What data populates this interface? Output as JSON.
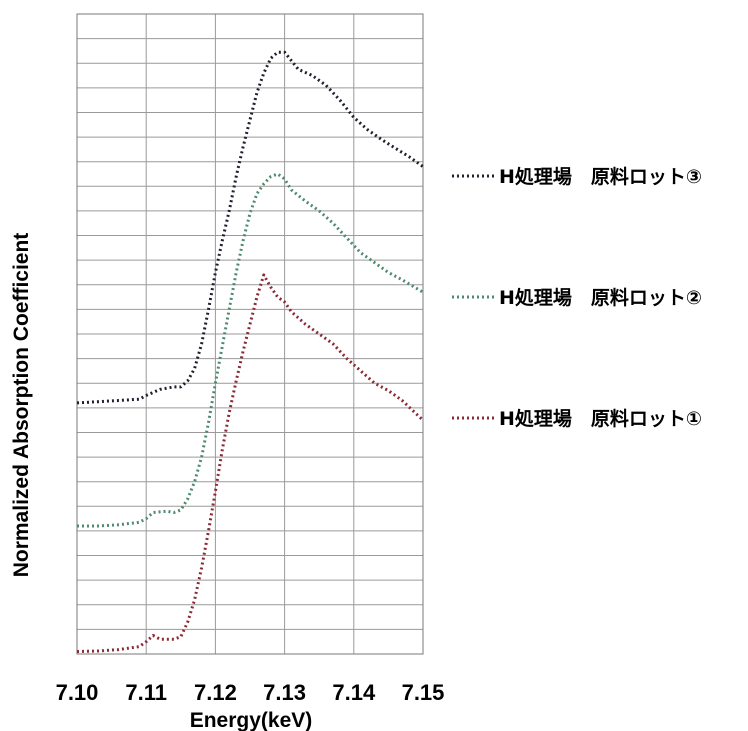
{
  "chart_data": {
    "type": "line",
    "title": "",
    "xlabel": "Energy(keV)",
    "ylabel": "Normalized Absorption Coefficient",
    "xlim": [
      7.1,
      7.15
    ],
    "ylim": [
      0,
      26
    ],
    "x_ticks": [
      "7.10",
      "7.11",
      "7.12",
      "7.13",
      "7.14",
      "7.15"
    ],
    "y_ticks_labeled": false,
    "grid": true,
    "legend_position": "right",
    "series": [
      {
        "name": "H処理場　原料ロット③",
        "color": "#1f1f2e",
        "points": [
          [
            7.1,
            10.2
          ],
          [
            7.103,
            10.25
          ],
          [
            7.106,
            10.3
          ],
          [
            7.109,
            10.35
          ],
          [
            7.11,
            10.5
          ],
          [
            7.112,
            10.75
          ],
          [
            7.114,
            10.85
          ],
          [
            7.115,
            10.85
          ],
          [
            7.116,
            11.1
          ],
          [
            7.117,
            11.6
          ],
          [
            7.118,
            12.6
          ],
          [
            7.119,
            14.0
          ],
          [
            7.12,
            15.5
          ],
          [
            7.121,
            16.8
          ],
          [
            7.122,
            18.0
          ],
          [
            7.123,
            19.4
          ],
          [
            7.124,
            20.6
          ],
          [
            7.125,
            21.7
          ],
          [
            7.126,
            22.8
          ],
          [
            7.127,
            23.6
          ],
          [
            7.128,
            24.2
          ],
          [
            7.129,
            24.45
          ],
          [
            7.13,
            24.45
          ],
          [
            7.131,
            24.1
          ],
          [
            7.132,
            23.75
          ],
          [
            7.134,
            23.5
          ],
          [
            7.136,
            23.1
          ],
          [
            7.138,
            22.5
          ],
          [
            7.14,
            21.8
          ],
          [
            7.142,
            21.3
          ],
          [
            7.144,
            20.9
          ],
          [
            7.146,
            20.55
          ],
          [
            7.148,
            20.2
          ],
          [
            7.15,
            19.8
          ]
        ]
      },
      {
        "name": "H処理場　原料ロット②",
        "color": "#4f8a6e",
        "points": [
          [
            7.1,
            5.2
          ],
          [
            7.103,
            5.2
          ],
          [
            7.106,
            5.25
          ],
          [
            7.109,
            5.35
          ],
          [
            7.11,
            5.5
          ],
          [
            7.111,
            5.75
          ],
          [
            7.113,
            5.8
          ],
          [
            7.114,
            5.75
          ],
          [
            7.115,
            5.85
          ],
          [
            7.116,
            6.3
          ],
          [
            7.117,
            7.0
          ],
          [
            7.118,
            8.0
          ],
          [
            7.119,
            9.4
          ],
          [
            7.12,
            11.0
          ],
          [
            7.121,
            12.5
          ],
          [
            7.122,
            14.0
          ],
          [
            7.123,
            15.5
          ],
          [
            7.124,
            16.8
          ],
          [
            7.125,
            17.9
          ],
          [
            7.126,
            18.7
          ],
          [
            7.127,
            19.1
          ],
          [
            7.128,
            19.4
          ],
          [
            7.129,
            19.5
          ],
          [
            7.13,
            19.3
          ],
          [
            7.131,
            18.85
          ],
          [
            7.133,
            18.4
          ],
          [
            7.135,
            18.0
          ],
          [
            7.137,
            17.5
          ],
          [
            7.139,
            16.9
          ],
          [
            7.141,
            16.3
          ],
          [
            7.143,
            15.9
          ],
          [
            7.145,
            15.5
          ],
          [
            7.147,
            15.2
          ],
          [
            7.15,
            14.7
          ]
        ]
      },
      {
        "name": "H処理場　原料ロット①",
        "color": "#8a2a34",
        "points": [
          [
            7.1,
            0.1
          ],
          [
            7.103,
            0.12
          ],
          [
            7.106,
            0.18
          ],
          [
            7.109,
            0.3
          ],
          [
            7.11,
            0.5
          ],
          [
            7.111,
            0.75
          ],
          [
            7.112,
            0.6
          ],
          [
            7.114,
            0.6
          ],
          [
            7.115,
            0.7
          ],
          [
            7.116,
            1.3
          ],
          [
            7.117,
            2.2
          ],
          [
            7.118,
            3.5
          ],
          [
            7.119,
            5.0
          ],
          [
            7.12,
            6.6
          ],
          [
            7.121,
            8.3
          ],
          [
            7.122,
            9.8
          ],
          [
            7.123,
            11.1
          ],
          [
            7.124,
            12.3
          ],
          [
            7.125,
            13.4
          ],
          [
            7.126,
            14.5
          ],
          [
            7.127,
            15.4
          ],
          [
            7.128,
            14.9
          ],
          [
            7.129,
            14.5
          ],
          [
            7.13,
            14.3
          ],
          [
            7.131,
            13.9
          ],
          [
            7.133,
            13.4
          ],
          [
            7.135,
            13.0
          ],
          [
            7.137,
            12.6
          ],
          [
            7.139,
            12.0
          ],
          [
            7.141,
            11.5
          ],
          [
            7.143,
            11.0
          ],
          [
            7.145,
            10.7
          ],
          [
            7.147,
            10.3
          ],
          [
            7.15,
            9.5
          ]
        ]
      }
    ]
  }
}
